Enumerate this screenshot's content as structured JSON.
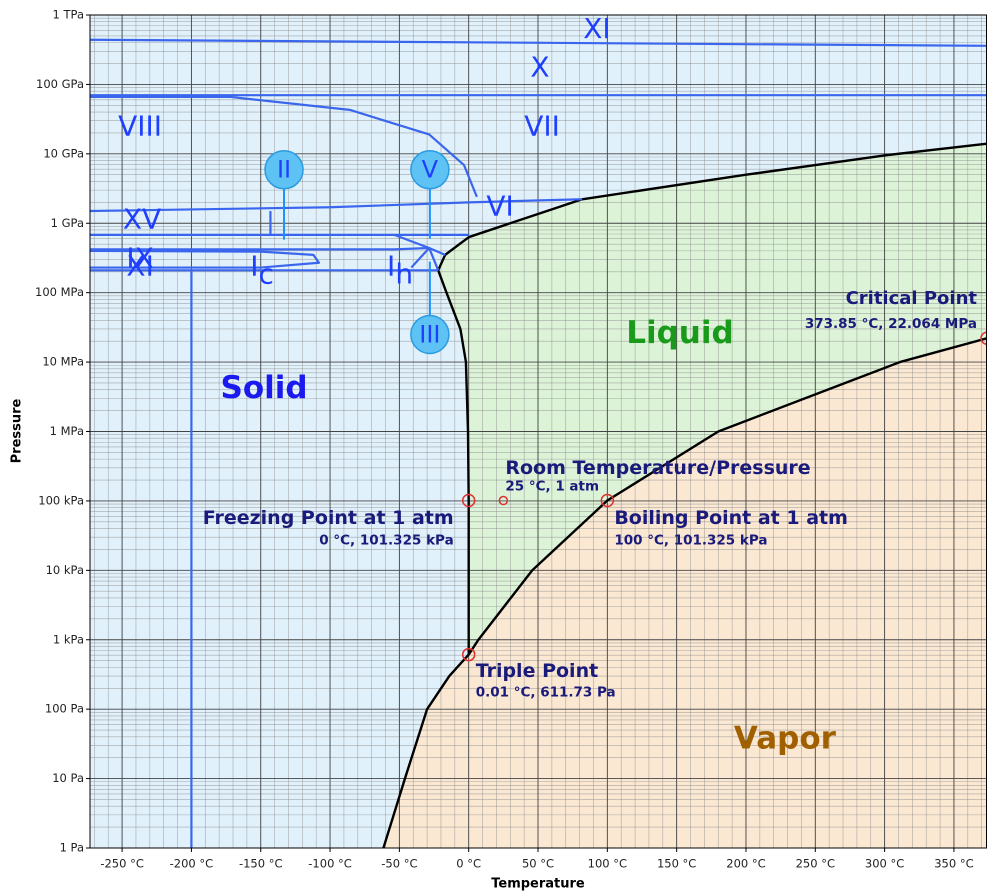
{
  "chart_data": {
    "type": "phase_diagram",
    "x_label": "Temperature",
    "y_label": "Pressure",
    "xlim": [
      -273.15,
      373.85
    ],
    "ylim": [
      1,
      1000000000000
    ],
    "log_y": true,
    "grid": true,
    "minor_grid": true,
    "xticks": [
      {
        "value": -250,
        "label": "-250 °C"
      },
      {
        "value": -200,
        "label": "-200 °C"
      },
      {
        "value": -150,
        "label": "-150 °C"
      },
      {
        "value": -100,
        "label": "-100 °C"
      },
      {
        "value": -50,
        "label": "-50 °C"
      },
      {
        "value": 0,
        "label": "0 °C"
      },
      {
        "value": 50,
        "label": "50 °C"
      },
      {
        "value": 100,
        "label": "100 °C"
      },
      {
        "value": 150,
        "label": "150 °C"
      },
      {
        "value": 200,
        "label": "200 °C"
      },
      {
        "value": 250,
        "label": "250 °C"
      },
      {
        "value": 300,
        "label": "300 °C"
      },
      {
        "value": 350,
        "label": "350 °C"
      }
    ],
    "yticks": [
      {
        "value": 1000000000000,
        "label": "1 TPa"
      },
      {
        "value": 100000000000,
        "label": "100 GPa"
      },
      {
        "value": 10000000000,
        "label": "10 GPa"
      },
      {
        "value": 1000000000,
        "label": "1 GPa"
      },
      {
        "value": 100000000,
        "label": "100 MPa"
      },
      {
        "value": 10000000,
        "label": "10 MPa"
      },
      {
        "value": 1000000,
        "label": "1 MPa"
      },
      {
        "value": 100000,
        "label": "100 kPa"
      },
      {
        "value": 10000,
        "label": "10 kPa"
      },
      {
        "value": 1000,
        "label": "1 kPa"
      },
      {
        "value": 100,
        "label": "100 Pa"
      },
      {
        "value": 10,
        "label": "10 Pa"
      },
      {
        "value": 1,
        "label": "1 Pa"
      }
    ],
    "region_colors": {
      "solid": "#e1f1fb",
      "liquid": "#ddf3d8",
      "vapor": "#fbe8d3"
    },
    "curves": [
      {
        "color": "#000000",
        "x": [
          -61.5,
          -46,
          -30,
          -14,
          0.01
        ],
        "y": [
          1,
          10,
          100,
          300,
          611.73
        ]
      },
      {
        "color": "#000000",
        "x": [
          0.01,
          7,
          45.8,
          100,
          180,
          311,
          373.85
        ],
        "y": [
          611.73,
          1000,
          10000,
          101325,
          1000000,
          10000000,
          22064000
        ]
      },
      {
        "color": "#000000",
        "x": [
          0.01,
          0,
          -0.5,
          -2,
          -6,
          -16,
          -21.985,
          -17,
          0.16,
          81.85,
          200,
          300,
          373.85
        ],
        "y": [
          611.73,
          100000,
          1000000,
          10000000,
          30000000,
          100000000,
          209900000,
          350100000,
          632400000,
          2216000000,
          5000000000,
          9500000000,
          14000000000
        ]
      },
      {
        "color": "#3a66ee",
        "x": [
          -273.15,
          373.85
        ],
        "y": [
          440000000000,
          360000000000
        ]
      },
      {
        "color": "#3a66ee",
        "x": [
          -273.15,
          373.85
        ],
        "y": [
          70000000000,
          70000000000
        ]
      },
      {
        "color": "#3a66ee",
        "x": [
          -273.15,
          -171.7,
          -85.8,
          -28.5,
          -3.4,
          5.9
        ],
        "y": [
          66000000000,
          66000000000,
          43000000000,
          19000000000,
          6900000000,
          2400000000
        ]
      },
      {
        "color": "#3a66ee",
        "x": [
          -273.15,
          -100,
          0,
          81.85
        ],
        "y": [
          1500000000,
          1700000000,
          2000000000,
          2216000000
        ]
      },
      {
        "color": "#3a66ee",
        "x": [
          -143,
          -143
        ],
        "y": [
          1500000000,
          680000000
        ]
      },
      {
        "color": "#3a66ee",
        "x": [
          -273.15,
          0.16
        ],
        "y": [
          680000000,
          680000000
        ]
      },
      {
        "color": "#3a66ee",
        "x": [
          -273.15,
          -53.6,
          -28.5,
          -17
        ],
        "y": [
          420000000,
          420000000,
          440000000,
          350100000
        ]
      },
      {
        "color": "#3a66ee",
        "x": [
          -53.6,
          -28.5,
          -21.985
        ],
        "y": [
          680000000,
          440000000,
          209900000
        ]
      },
      {
        "color": "#3a66ee",
        "x": [
          -28.5,
          -41.4
        ],
        "y": [
          440000000,
          230000000
        ]
      },
      {
        "color": "#3a66ee",
        "x": [
          -273.15,
          -150,
          -112,
          -108,
          -150,
          -273.15
        ],
        "y": [
          400000000,
          390000000,
          350000000,
          270000000,
          230000000,
          230000000
        ]
      },
      {
        "color": "#3a66ee",
        "x": [
          -273.15,
          -21.985
        ],
        "y": [
          210000000,
          209900000
        ]
      },
      {
        "color": "#3a66ee",
        "x": [
          -200,
          -200
        ],
        "y": [
          1,
          210000000
        ]
      }
    ],
    "points": [
      {
        "name": "Triple Point",
        "detail": "0.01 °C, 611.73 Pa",
        "x": 0.01,
        "y": 611.73
      },
      {
        "name": "Freezing Point at 1 atm",
        "detail": "0 °C, 101.325 kPa",
        "x": 0,
        "y": 101325
      },
      {
        "name": "Room Temperature/Pressure",
        "detail": "25 °C, 1 atm",
        "x": 25,
        "y": 101325
      },
      {
        "name": "Boiling Point at 1 atm",
        "detail": "100 °C, 101.325 kPa",
        "x": 100,
        "y": 101325
      },
      {
        "name": "Critical Point",
        "detail": "373.85 °C, 22.064 MPa",
        "x": 373.85,
        "y": 22064000
      }
    ],
    "point_color": "#e03030",
    "region_labels": [
      {
        "text": "Solid",
        "x": -147.6,
        "y": 4000000,
        "color": "#1a1aee"
      },
      {
        "text": "Liquid",
        "x": 152.4,
        "y": 25000000,
        "color": "#1a9a1a"
      },
      {
        "text": "Vapor",
        "x": 228.1,
        "y": 36,
        "color": "#a06000"
      }
    ],
    "phase_labels": [
      {
        "text": "XI",
        "x": 92.5,
        "y": 610000000000
      },
      {
        "text": "X",
        "x": 51.4,
        "y": 170000000000
      },
      {
        "text": "VIII",
        "x": -237,
        "y": 24000000000
      },
      {
        "text": "VII",
        "x": 52.9,
        "y": 24000000000
      },
      {
        "text": "XV",
        "x": -235.6,
        "y": 1100000000
      },
      {
        "text": "VI",
        "x": 22.6,
        "y": 1700000000
      },
      {
        "text": "IX",
        "x": -237,
        "y": 300000000
      },
      {
        "text": "XI",
        "x": -237,
        "y": 230000000
      },
      {
        "text": "I",
        "sub": "c",
        "x": -149,
        "y": 230000000
      },
      {
        "text": "I",
        "sub": "h",
        "x": -49.5,
        "y": 230000000
      }
    ],
    "phase_label_color": "#1f3fff",
    "circled_labels": [
      {
        "text": "II",
        "x": -133.2,
        "y": 5900000000,
        "stem_y": 580000000
      },
      {
        "text": "V",
        "x": -28,
        "y": 5900000000,
        "stem_y": 600000000
      },
      {
        "text": "III",
        "x": -28,
        "y": 25000000,
        "stem_y": 280000000
      }
    ]
  }
}
